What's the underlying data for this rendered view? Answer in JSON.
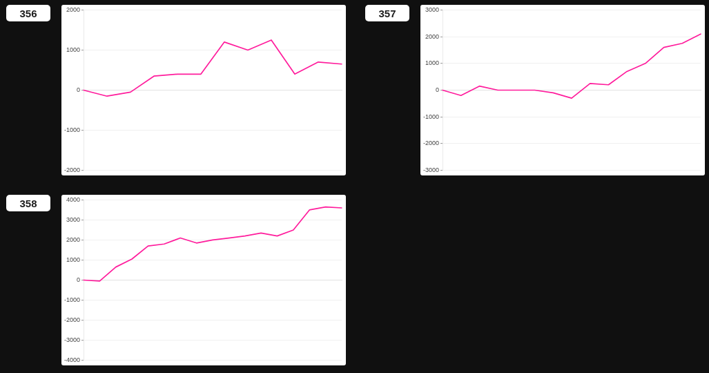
{
  "chart_data": [
    {
      "type": "line",
      "title": "356",
      "categories": [
        null,
        null,
        null,
        null,
        null,
        null,
        null,
        null,
        null,
        null,
        null,
        null
      ],
      "values": [
        0,
        -150,
        -50,
        350,
        400,
        400,
        1200,
        1000,
        1250,
        400,
        700,
        650
      ],
      "color": "#ff1c9c",
      "ylim": [
        -2000,
        2000
      ],
      "yticks": [
        -2000,
        -1000,
        0,
        1000,
        2000
      ],
      "grid": "y",
      "tick_labels": "y"
    },
    {
      "type": "line",
      "title": "357",
      "categories": [
        null,
        null,
        null,
        null,
        null,
        null,
        null,
        null,
        null,
        null,
        null,
        null,
        null,
        null,
        null
      ],
      "values": [
        0,
        -200,
        150,
        0,
        0,
        0,
        -100,
        -300,
        250,
        200,
        700,
        1000,
        1600,
        1750,
        2100
      ],
      "color": "#ff1c9c",
      "ylim": [
        -3000,
        3000
      ],
      "yticks": [
        -3000,
        -2000,
        -1000,
        0,
        1000,
        2000,
        3000
      ],
      "grid": "y",
      "tick_labels": "y"
    },
    {
      "type": "line",
      "title": "358",
      "categories": [
        null,
        null,
        null,
        null,
        null,
        null,
        null,
        null,
        null,
        null,
        null,
        null,
        null,
        null,
        null,
        null,
        null
      ],
      "values": [
        0,
        -50,
        650,
        1050,
        1700,
        1800,
        2100,
        1850,
        2000,
        2100,
        2200,
        2350,
        2200,
        2500,
        3500,
        3650,
        3600
      ],
      "color": "#ff1c9c",
      "ylim": [
        -4000,
        4000
      ],
      "yticks": [
        -4000,
        -3000,
        -2000,
        -1000,
        0,
        1000,
        2000,
        3000,
        4000
      ],
      "grid": "y",
      "tick_labels": "y"
    }
  ]
}
